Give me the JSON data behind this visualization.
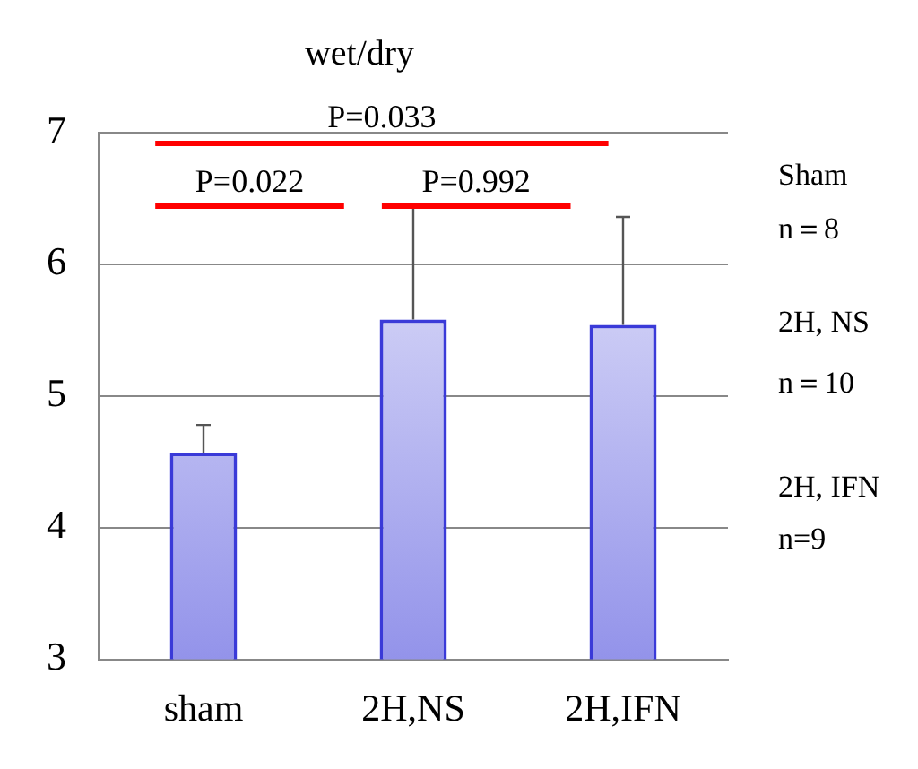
{
  "chart_data": {
    "type": "bar",
    "title": "wet/dry",
    "categories": [
      "sham",
      "2H,NS",
      "2H,IFN"
    ],
    "values": [
      4.57,
      5.58,
      5.54
    ],
    "color": "#3a3ad8",
    "errors": [
      [
        4.57,
        4.78
      ],
      [
        5.58,
        6.46
      ],
      [
        5.54,
        6.36
      ]
    ],
    "ylim": [
      3,
      7
    ],
    "yticks": [
      3,
      4,
      5,
      6,
      7
    ],
    "grid": "y",
    "annotations": [
      "P=0.033",
      "P=0.022",
      "P=0.992",
      "Sham",
      "n＝8",
      "2H, NS",
      "n＝10",
      "2H, IFN",
      "n=9"
    ]
  }
}
